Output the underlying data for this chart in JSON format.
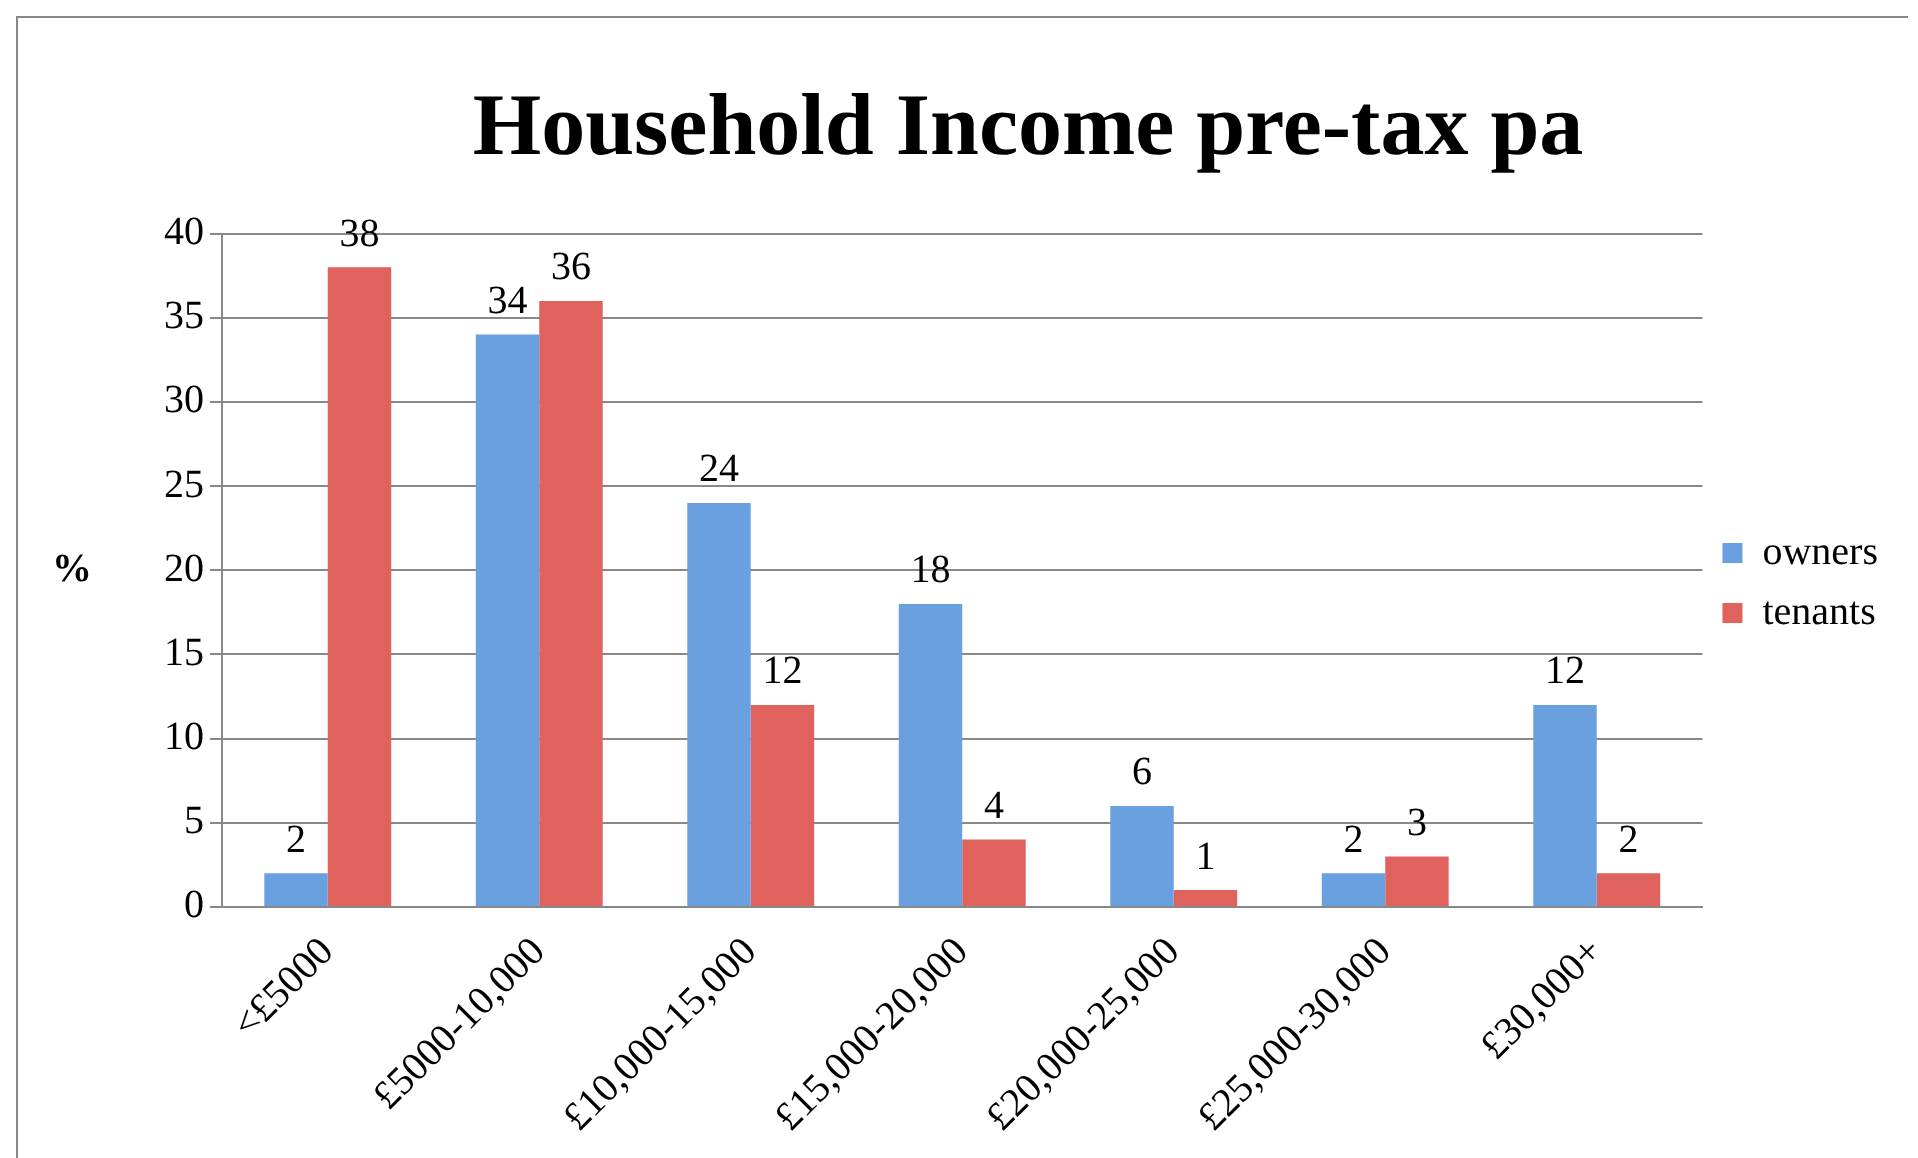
{
  "chart_data": {
    "type": "bar",
    "title": "Household Income pre-tax pa",
    "ylabel": "%",
    "categories": [
      "<£5000",
      "£5000-10,000",
      "£10,000-15,000",
      "£15,000-20,000",
      "£20,000-25,000",
      "£25,000-30,000",
      "£30,000+"
    ],
    "series": [
      {
        "name": "owners",
        "color": "#6a9fe0",
        "values": [
          2,
          34,
          24,
          18,
          6,
          2,
          12
        ]
      },
      {
        "name": "tenants",
        "color": "#e0625c",
        "values": [
          38,
          36,
          12,
          4,
          1,
          3,
          2
        ]
      }
    ],
    "ylim": [
      0,
      40
    ],
    "yticks": [
      0,
      5,
      10,
      15,
      20,
      25,
      30,
      35,
      40
    ],
    "grid": "y",
    "legend": "right",
    "data_labels": true
  }
}
